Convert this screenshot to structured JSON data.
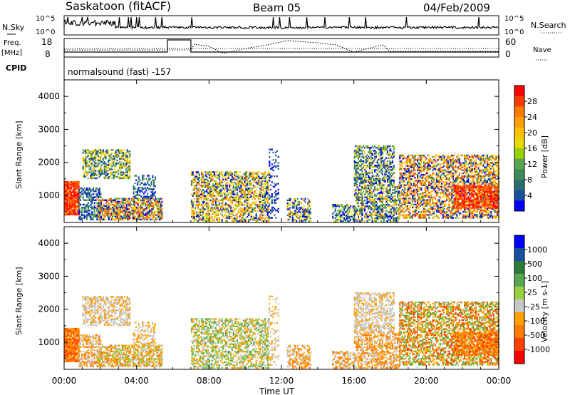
{
  "header": {
    "station": "Saskatoon (fitACF)",
    "beam": "Beam 05",
    "date": "04/Feb/2009"
  },
  "noise_panel": {
    "left_label": "N.Sky",
    "right_label": "N.Search",
    "left_ticks": [
      "10^5",
      "10^0"
    ],
    "right_ticks": [
      "10^5",
      "10^0"
    ]
  },
  "freq_panel": {
    "left_label_1": "Freq.",
    "left_label_2": "[MHz]",
    "right_label": "Nave",
    "left_ticks": [
      "18",
      "8"
    ],
    "right_ticks": [
      "60",
      "0"
    ]
  },
  "cpid_panel": {
    "label": "CPID",
    "text": "normalsound (fast) -157"
  },
  "chart_data": [
    {
      "type": "heatmap",
      "name": "power",
      "ylabel": "Slant Range [km]",
      "xlabel": "Time UT",
      "x_ticks": [
        "00:00",
        "04:00",
        "08:00",
        "12:00",
        "16:00",
        "20:00",
        "00:00"
      ],
      "y_ticks": [
        "1000",
        "2000",
        "3000",
        "4000"
      ],
      "colorbar_label": "Power [dB]",
      "colorbar_ticks": [
        "28",
        "24",
        "20",
        "16",
        "12",
        "8",
        "4"
      ],
      "colorbar_colors": [
        "#ff0000",
        "#ff3a00",
        "#ff7a00",
        "#ff9e00",
        "#ffc000",
        "#e6d800",
        "#9ad000",
        "#5aa650",
        "#3a8a5a",
        "#286e6e",
        "#1a4ea0",
        "#0000ff"
      ],
      "ylim": [
        180,
        4500
      ],
      "xlim_hours": [
        0,
        24
      ]
    },
    {
      "type": "heatmap",
      "name": "velocity",
      "ylabel": "Slant Range [km]",
      "xlabel": "Time UT",
      "x_ticks": [
        "00:00",
        "04:00",
        "08:00",
        "12:00",
        "16:00",
        "20:00",
        "00:00"
      ],
      "y_ticks": [
        "1000",
        "2000",
        "3000",
        "4000"
      ],
      "colorbar_label": "Velocity [m s-1]",
      "colorbar_ticks": [
        "1000",
        "500",
        "100",
        "25",
        "-25",
        "-100",
        "-500",
        "-1000"
      ],
      "colorbar_colors": [
        "#0000ff",
        "#1a4ea0",
        "#2a7a3a",
        "#5aa650",
        "#9ad040",
        "#c8c8c8",
        "#ffa000",
        "#ff7a00",
        "#ff4000",
        "#ff0000"
      ],
      "ylim": [
        180,
        4500
      ],
      "xlim_hours": [
        0,
        24
      ]
    }
  ],
  "xaxis": {
    "title": "Time UT",
    "ticks": [
      "00:00",
      "04:00",
      "08:00",
      "12:00",
      "16:00",
      "20:00",
      "00:00"
    ]
  }
}
